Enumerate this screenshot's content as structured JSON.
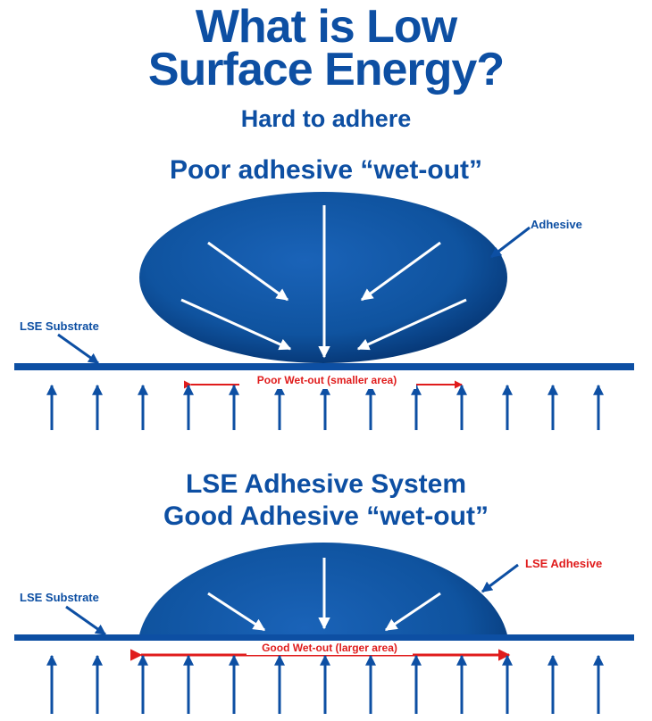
{
  "header": {
    "title_line1": "What is Low",
    "title_line2": "Surface Energy?",
    "subtitle": "Hard to adhere"
  },
  "poor_section": {
    "heading": "Poor adhesive “wet-out”",
    "adhesive_label": "Adhesive",
    "substrate_label": "LSE Substrate",
    "wetout_label": "Poor Wet-out (smaller area)"
  },
  "good_section": {
    "heading_line1": "LSE Adhesive System",
    "heading_line2": "Good Adhesive “wet-out”",
    "adhesive_label": "LSE Adhesive",
    "substrate_label": "LSE Substrate",
    "wetout_label": "Good Wet-out (larger area)"
  },
  "colors": {
    "brand_blue": "#0d4fa3",
    "accent_red": "#e01c1c"
  }
}
